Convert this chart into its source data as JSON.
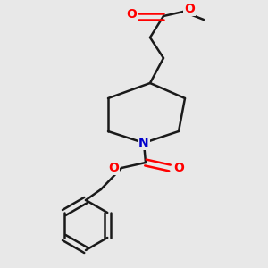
{
  "bg_color": "#e8e8e8",
  "bond_color": "#1a1a1a",
  "oxygen_color": "#ff0000",
  "nitrogen_color": "#0000cc",
  "line_width": 1.8,
  "fig_size": [
    3.0,
    3.0
  ],
  "dpi": 100,
  "xlim": [
    0,
    300
  ],
  "ylim": [
    0,
    300
  ]
}
